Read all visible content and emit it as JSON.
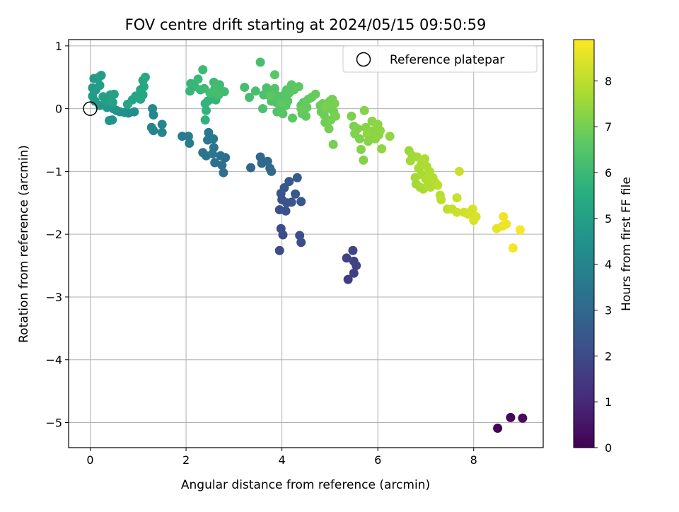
{
  "chart_data": {
    "type": "scatter",
    "title": "FOV centre drift starting at 2024/05/15 09:50:59",
    "xlabel": "Angular distance from reference (arcmin)",
    "ylabel": "Rotation from reference (arcmin)",
    "xlim": [
      -0.45,
      9.45
    ],
    "ylim": [
      -5.4,
      1.1
    ],
    "xticks": [
      0,
      2,
      4,
      6,
      8
    ],
    "yticks": [
      1,
      0,
      -1,
      -2,
      -3,
      -4,
      -5
    ],
    "xtick_labels": [
      "0",
      "2",
      "4",
      "6",
      "8"
    ],
    "ytick_labels": [
      "1",
      "0",
      "−1",
      "−2",
      "−3",
      "−4",
      "−5"
    ],
    "grid": true,
    "legend": {
      "placement": "top-right",
      "entries": [
        "Reference platepar"
      ]
    },
    "reference_point": {
      "x": 0,
      "y": 0,
      "label": "Reference platepar"
    },
    "colorbar": {
      "label": "Hours from first FF file",
      "colormap": "viridis",
      "range": [
        0,
        8.9
      ],
      "ticks": [
        0,
        1,
        2,
        3,
        4,
        5,
        6,
        7,
        8
      ],
      "tick_labels": [
        "0",
        "1",
        "2",
        "3",
        "4",
        "5",
        "6",
        "7",
        "8"
      ]
    },
    "points": [
      {
        "x": 8.5,
        "y": -5.09,
        "t": 0.05
      },
      {
        "x": 8.77,
        "y": -4.92,
        "t": 0.15
      },
      {
        "x": 9.02,
        "y": -4.93,
        "t": 0.25
      },
      {
        "x": 5.38,
        "y": -2.72,
        "t": 1.6
      },
      {
        "x": 5.5,
        "y": -2.62,
        "t": 1.65
      },
      {
        "x": 5.55,
        "y": -2.5,
        "t": 1.7
      },
      {
        "x": 5.35,
        "y": -2.38,
        "t": 1.7
      },
      {
        "x": 5.5,
        "y": -2.43,
        "t": 1.75
      },
      {
        "x": 5.48,
        "y": -2.26,
        "t": 1.8
      },
      {
        "x": 3.95,
        "y": -2.26,
        "t": 2.0
      },
      {
        "x": 4.02,
        "y": -2.01,
        "t": 2.05
      },
      {
        "x": 3.98,
        "y": -1.91,
        "t": 2.1
      },
      {
        "x": 4.4,
        "y": -2.13,
        "t": 2.1
      },
      {
        "x": 4.37,
        "y": -2.02,
        "t": 2.15
      },
      {
        "x": 3.95,
        "y": -1.61,
        "t": 2.2
      },
      {
        "x": 4.08,
        "y": -1.63,
        "t": 2.25
      },
      {
        "x": 4.1,
        "y": -1.5,
        "t": 2.25
      },
      {
        "x": 4.0,
        "y": -1.45,
        "t": 2.3
      },
      {
        "x": 3.98,
        "y": -1.35,
        "t": 2.3
      },
      {
        "x": 4.05,
        "y": -1.26,
        "t": 2.35
      },
      {
        "x": 4.2,
        "y": -1.49,
        "t": 2.35
      },
      {
        "x": 4.28,
        "y": -1.36,
        "t": 2.4
      },
      {
        "x": 4.4,
        "y": -1.48,
        "t": 2.4
      },
      {
        "x": 4.15,
        "y": -1.16,
        "t": 2.45
      },
      {
        "x": 4.32,
        "y": -1.1,
        "t": 2.5
      },
      {
        "x": 3.35,
        "y": -0.94,
        "t": 2.9
      },
      {
        "x": 3.55,
        "y": -0.77,
        "t": 2.95
      },
      {
        "x": 3.58,
        "y": -0.87,
        "t": 3.0
      },
      {
        "x": 3.7,
        "y": -0.84,
        "t": 3.0
      },
      {
        "x": 3.75,
        "y": -0.95,
        "t": 3.05
      },
      {
        "x": 3.78,
        "y": -1.0,
        "t": 3.05
      },
      {
        "x": 2.82,
        "y": -0.78,
        "t": 3.2
      },
      {
        "x": 2.72,
        "y": -0.75,
        "t": 3.25
      },
      {
        "x": 2.75,
        "y": -0.9,
        "t": 3.25
      },
      {
        "x": 2.78,
        "y": -1.02,
        "t": 3.3
      },
      {
        "x": 2.6,
        "y": -0.86,
        "t": 3.3
      },
      {
        "x": 2.35,
        "y": -0.7,
        "t": 3.4
      },
      {
        "x": 2.42,
        "y": -0.75,
        "t": 3.45
      },
      {
        "x": 2.55,
        "y": -0.72,
        "t": 3.5
      },
      {
        "x": 2.58,
        "y": -0.62,
        "t": 3.5
      },
      {
        "x": 2.45,
        "y": -0.5,
        "t": 3.55
      },
      {
        "x": 2.57,
        "y": -0.48,
        "t": 3.55
      },
      {
        "x": 2.47,
        "y": -0.38,
        "t": 3.6
      },
      {
        "x": 2.07,
        "y": -0.55,
        "t": 3.65
      },
      {
        "x": 1.92,
        "y": -0.44,
        "t": 3.7
      },
      {
        "x": 2.05,
        "y": -0.44,
        "t": 3.7
      },
      {
        "x": 1.32,
        "y": -0.35,
        "t": 3.95
      },
      {
        "x": 1.28,
        "y": -0.3,
        "t": 4.0
      },
      {
        "x": 1.5,
        "y": -0.38,
        "t": 4.0
      },
      {
        "x": 1.5,
        "y": -0.25,
        "t": 4.05
      },
      {
        "x": 1.32,
        "y": -0.1,
        "t": 4.1
      },
      {
        "x": 1.3,
        "y": 0.0,
        "t": 4.15
      },
      {
        "x": 0.92,
        "y": -0.05,
        "t": 4.3
      },
      {
        "x": 0.8,
        "y": -0.07,
        "t": 4.35
      },
      {
        "x": 0.72,
        "y": -0.06,
        "t": 4.4
      },
      {
        "x": 0.62,
        "y": -0.05,
        "t": 4.45
      },
      {
        "x": 0.55,
        "y": -0.03,
        "t": 4.5
      },
      {
        "x": 0.4,
        "y": -0.19,
        "t": 4.55
      },
      {
        "x": 0.46,
        "y": -0.18,
        "t": 4.55
      },
      {
        "x": 0.48,
        "y": 0.0,
        "t": 4.6
      },
      {
        "x": 0.35,
        "y": 0.02,
        "t": 4.65
      },
      {
        "x": 0.2,
        "y": 0.05,
        "t": 4.7
      },
      {
        "x": 0.1,
        "y": 0.12,
        "t": 4.75
      },
      {
        "x": 0.05,
        "y": 0.2,
        "t": 4.8
      },
      {
        "x": 0.05,
        "y": 0.33,
        "t": 4.8
      },
      {
        "x": 0.12,
        "y": 0.3,
        "t": 4.85
      },
      {
        "x": 0.08,
        "y": 0.48,
        "t": 4.85
      },
      {
        "x": 0.2,
        "y": 0.37,
        "t": 4.9
      },
      {
        "x": 0.23,
        "y": 0.53,
        "t": 4.9
      },
      {
        "x": 0.18,
        "y": 0.5,
        "t": 4.95
      },
      {
        "x": 0.27,
        "y": 0.19,
        "t": 4.95
      },
      {
        "x": 0.32,
        "y": 0.12,
        "t": 5.0
      },
      {
        "x": 0.42,
        "y": 0.22,
        "t": 5.0
      },
      {
        "x": 0.45,
        "y": 0.1,
        "t": 5.05
      },
      {
        "x": 0.5,
        "y": 0.23,
        "t": 5.05
      },
      {
        "x": 0.47,
        "y": 0.1,
        "t": 5.1
      },
      {
        "x": 0.78,
        "y": 0.07,
        "t": 5.15
      },
      {
        "x": 0.88,
        "y": 0.14,
        "t": 5.2
      },
      {
        "x": 0.95,
        "y": 0.2,
        "t": 5.2
      },
      {
        "x": 1.05,
        "y": 0.15,
        "t": 5.25
      },
      {
        "x": 1.1,
        "y": 0.22,
        "t": 5.25
      },
      {
        "x": 1.05,
        "y": 0.3,
        "t": 5.3
      },
      {
        "x": 1.12,
        "y": 0.35,
        "t": 5.3
      },
      {
        "x": 1.1,
        "y": 0.45,
        "t": 5.35
      },
      {
        "x": 1.15,
        "y": 0.5,
        "t": 5.35
      },
      {
        "x": 2.4,
        "y": -0.18,
        "t": 5.7
      },
      {
        "x": 2.42,
        "y": -0.03,
        "t": 5.75
      },
      {
        "x": 2.4,
        "y": 0.08,
        "t": 5.75
      },
      {
        "x": 2.45,
        "y": 0.12,
        "t": 5.8
      },
      {
        "x": 2.52,
        "y": 0.15,
        "t": 5.8
      },
      {
        "x": 2.62,
        "y": 0.14,
        "t": 5.85
      },
      {
        "x": 2.08,
        "y": 0.28,
        "t": 5.85
      },
      {
        "x": 2.1,
        "y": 0.4,
        "t": 5.9
      },
      {
        "x": 2.18,
        "y": 0.35,
        "t": 5.9
      },
      {
        "x": 2.25,
        "y": 0.47,
        "t": 5.95
      },
      {
        "x": 2.3,
        "y": 0.3,
        "t": 5.95
      },
      {
        "x": 2.38,
        "y": 0.32,
        "t": 6.0
      },
      {
        "x": 2.35,
        "y": 0.62,
        "t": 6.0
      },
      {
        "x": 2.58,
        "y": 0.42,
        "t": 6.05
      },
      {
        "x": 2.7,
        "y": 0.38,
        "t": 6.05
      },
      {
        "x": 2.72,
        "y": 0.28,
        "t": 6.1
      },
      {
        "x": 2.8,
        "y": 0.27,
        "t": 6.1
      },
      {
        "x": 2.68,
        "y": 0.22,
        "t": 6.15
      },
      {
        "x": 2.6,
        "y": 0.31,
        "t": 6.15
      },
      {
        "x": 2.5,
        "y": 0.25,
        "t": 6.15
      },
      {
        "x": 3.22,
        "y": 0.34,
        "t": 6.2
      },
      {
        "x": 3.32,
        "y": 0.18,
        "t": 6.2
      },
      {
        "x": 3.45,
        "y": 0.28,
        "t": 6.25
      },
      {
        "x": 3.55,
        "y": 0.74,
        "t": 6.25
      },
      {
        "x": 3.6,
        "y": 0.0,
        "t": 6.3
      },
      {
        "x": 3.62,
        "y": 0.22,
        "t": 6.3
      },
      {
        "x": 3.68,
        "y": 0.33,
        "t": 6.3
      },
      {
        "x": 3.72,
        "y": 0.28,
        "t": 6.35
      },
      {
        "x": 3.78,
        "y": 0.12,
        "t": 6.35
      },
      {
        "x": 3.82,
        "y": 0.25,
        "t": 6.35
      },
      {
        "x": 3.85,
        "y": 0.32,
        "t": 6.4
      },
      {
        "x": 3.88,
        "y": 0.1,
        "t": 6.4
      },
      {
        "x": 3.9,
        "y": -0.05,
        "t": 6.4
      },
      {
        "x": 3.92,
        "y": 0.2,
        "t": 6.45
      },
      {
        "x": 3.95,
        "y": 0.15,
        "t": 6.45
      },
      {
        "x": 3.98,
        "y": 0.02,
        "t": 6.45
      },
      {
        "x": 4.02,
        "y": -0.08,
        "t": 6.5
      },
      {
        "x": 4.05,
        "y": 0.22,
        "t": 6.5
      },
      {
        "x": 4.08,
        "y": 0.05,
        "t": 6.5
      },
      {
        "x": 4.1,
        "y": 0.3,
        "t": 6.55
      },
      {
        "x": 4.12,
        "y": 0.12,
        "t": 6.55
      },
      {
        "x": 4.15,
        "y": 0.25,
        "t": 6.55
      },
      {
        "x": 4.2,
        "y": 0.38,
        "t": 6.6
      },
      {
        "x": 4.22,
        "y": -0.15,
        "t": 6.6
      },
      {
        "x": 4.25,
        "y": 0.3,
        "t": 6.6
      },
      {
        "x": 3.85,
        "y": 0.54,
        "t": 6.6
      },
      {
        "x": 3.75,
        "y": 0.2,
        "t": 6.6
      },
      {
        "x": 4.0,
        "y": 0.08,
        "t": 6.65
      },
      {
        "x": 4.35,
        "y": 0.35,
        "t": 6.65
      },
      {
        "x": 4.4,
        "y": 0.05,
        "t": 6.65
      },
      {
        "x": 4.42,
        "y": -0.08,
        "t": 6.7
      },
      {
        "x": 4.45,
        "y": 0.1,
        "t": 6.7
      },
      {
        "x": 4.5,
        "y": -0.12,
        "t": 6.7
      },
      {
        "x": 4.52,
        "y": 0.02,
        "t": 6.75
      },
      {
        "x": 4.55,
        "y": 0.15,
        "t": 6.75
      },
      {
        "x": 4.62,
        "y": 0.18,
        "t": 6.75
      },
      {
        "x": 4.7,
        "y": 0.23,
        "t": 6.8
      },
      {
        "x": 4.4,
        "y": 0.0,
        "t": 6.8
      },
      {
        "x": 4.8,
        "y": 0.05,
        "t": 6.85
      },
      {
        "x": 4.82,
        "y": -0.05,
        "t": 6.85
      },
      {
        "x": 4.85,
        "y": 0.08,
        "t": 6.9
      },
      {
        "x": 4.88,
        "y": -0.1,
        "t": 6.9
      },
      {
        "x": 4.9,
        "y": -0.22,
        "t": 6.9
      },
      {
        "x": 4.95,
        "y": 0.0,
        "t": 6.95
      },
      {
        "x": 4.98,
        "y": -0.32,
        "t": 6.95
      },
      {
        "x": 5.0,
        "y": 0.12,
        "t": 6.95
      },
      {
        "x": 5.02,
        "y": -0.18,
        "t": 7.0
      },
      {
        "x": 5.05,
        "y": 0.15,
        "t": 7.0
      },
      {
        "x": 5.08,
        "y": -0.05,
        "t": 7.0
      },
      {
        "x": 5.1,
        "y": 0.08,
        "t": 7.05
      },
      {
        "x": 5.12,
        "y": -0.12,
        "t": 7.05
      },
      {
        "x": 5.07,
        "y": -0.57,
        "t": 7.05
      },
      {
        "x": 4.92,
        "y": 0.03,
        "t": 7.05
      },
      {
        "x": 5.45,
        "y": -0.12,
        "t": 7.1
      },
      {
        "x": 5.5,
        "y": -0.28,
        "t": 7.1
      },
      {
        "x": 5.52,
        "y": -0.4,
        "t": 7.15
      },
      {
        "x": 5.58,
        "y": -0.32,
        "t": 7.15
      },
      {
        "x": 5.62,
        "y": -0.48,
        "t": 7.15
      },
      {
        "x": 5.65,
        "y": -0.65,
        "t": 7.2
      },
      {
        "x": 5.7,
        "y": -0.82,
        "t": 7.2
      },
      {
        "x": 5.72,
        "y": -0.03,
        "t": 7.2
      },
      {
        "x": 5.75,
        "y": -0.3,
        "t": 7.25
      },
      {
        "x": 5.8,
        "y": -0.52,
        "t": 7.25
      },
      {
        "x": 5.85,
        "y": -0.45,
        "t": 7.25
      },
      {
        "x": 5.88,
        "y": -0.2,
        "t": 7.3
      },
      {
        "x": 5.9,
        "y": -0.35,
        "t": 7.3
      },
      {
        "x": 5.95,
        "y": -0.48,
        "t": 7.3
      },
      {
        "x": 6.0,
        "y": -0.25,
        "t": 7.35
      },
      {
        "x": 6.02,
        "y": -0.42,
        "t": 7.35
      },
      {
        "x": 6.05,
        "y": -0.35,
        "t": 7.35
      },
      {
        "x": 6.08,
        "y": -0.64,
        "t": 7.4
      },
      {
        "x": 6.25,
        "y": -0.44,
        "t": 7.4
      },
      {
        "x": 5.78,
        "y": -0.4,
        "t": 7.4
      },
      {
        "x": 6.65,
        "y": -0.67,
        "t": 7.55
      },
      {
        "x": 6.68,
        "y": -0.83,
        "t": 7.6
      },
      {
        "x": 6.72,
        "y": -0.75,
        "t": 7.6
      },
      {
        "x": 6.78,
        "y": -1.1,
        "t": 7.65
      },
      {
        "x": 6.8,
        "y": -1.2,
        "t": 7.65
      },
      {
        "x": 6.82,
        "y": -0.77,
        "t": 7.7
      },
      {
        "x": 6.85,
        "y": -0.95,
        "t": 7.7
      },
      {
        "x": 6.88,
        "y": -1.25,
        "t": 7.7
      },
      {
        "x": 6.9,
        "y": -0.9,
        "t": 7.75
      },
      {
        "x": 6.92,
        "y": -1.05,
        "t": 7.75
      },
      {
        "x": 6.95,
        "y": -1.28,
        "t": 7.75
      },
      {
        "x": 6.98,
        "y": -0.8,
        "t": 7.8
      },
      {
        "x": 7.0,
        "y": -1.12,
        "t": 7.8
      },
      {
        "x": 7.02,
        "y": -0.92,
        "t": 7.8
      },
      {
        "x": 7.05,
        "y": -1.2,
        "t": 7.85
      },
      {
        "x": 7.08,
        "y": -1.0,
        "t": 7.85
      },
      {
        "x": 7.1,
        "y": -1.25,
        "t": 7.85
      },
      {
        "x": 7.15,
        "y": -1.1,
        "t": 7.9
      },
      {
        "x": 7.2,
        "y": -1.18,
        "t": 7.9
      },
      {
        "x": 7.25,
        "y": -1.22,
        "t": 7.95
      },
      {
        "x": 7.3,
        "y": -1.38,
        "t": 7.95
      },
      {
        "x": 7.32,
        "y": -1.45,
        "t": 8.0
      },
      {
        "x": 7.45,
        "y": -1.6,
        "t": 8.05
      },
      {
        "x": 7.55,
        "y": -1.6,
        "t": 8.1
      },
      {
        "x": 7.65,
        "y": -1.42,
        "t": 8.15
      },
      {
        "x": 7.65,
        "y": -1.65,
        "t": 8.2
      },
      {
        "x": 7.7,
        "y": -1.0,
        "t": 8.2
      },
      {
        "x": 7.8,
        "y": -1.65,
        "t": 8.25
      },
      {
        "x": 7.88,
        "y": -1.68,
        "t": 8.3
      },
      {
        "x": 7.92,
        "y": -1.65,
        "t": 8.3
      },
      {
        "x": 7.98,
        "y": -1.6,
        "t": 8.35
      },
      {
        "x": 8.0,
        "y": -1.78,
        "t": 8.4
      },
      {
        "x": 8.05,
        "y": -1.72,
        "t": 8.4
      },
      {
        "x": 8.48,
        "y": -1.91,
        "t": 8.6
      },
      {
        "x": 8.6,
        "y": -1.87,
        "t": 8.65
      },
      {
        "x": 8.62,
        "y": -1.72,
        "t": 8.7
      },
      {
        "x": 8.68,
        "y": -1.84,
        "t": 8.7
      },
      {
        "x": 8.82,
        "y": -2.22,
        "t": 8.75
      },
      {
        "x": 8.97,
        "y": -1.93,
        "t": 8.85
      }
    ]
  }
}
